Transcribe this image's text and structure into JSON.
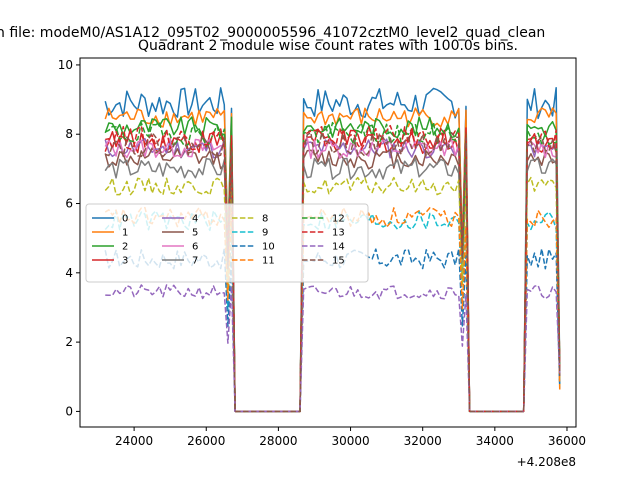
{
  "chart_data": {
    "type": "line",
    "suptitle": "n file: modeM0/AS1A12_095T02_9000005596_41072cztM0_level2_quad_clean",
    "title": "Quadrant 2 module wise count rates with 100.0s bins.",
    "xlabel": "",
    "ylabel": "",
    "x_offset_label": "+4.208e8",
    "xlim": [
      22500,
      36250
    ],
    "ylim": [
      -0.45,
      10.2
    ],
    "xticks": [
      24000,
      26000,
      28000,
      30000,
      32000,
      34000,
      36000
    ],
    "xtick_labels": [
      "24000",
      "26000",
      "28000",
      "30000",
      "32000",
      "34000",
      "36000"
    ],
    "yticks": [
      0,
      2,
      4,
      6,
      8,
      10
    ],
    "ytick_labels": [
      "0",
      "2",
      "4",
      "6",
      "8",
      "10"
    ],
    "x_start": 23200,
    "x_end": 35800,
    "bin_size": 100,
    "gaps": [
      {
        "off_start": 26600,
        "zero_start": 26800,
        "zero_end": 28600,
        "on_again": 28700
      },
      {
        "off_start": 33100,
        "zero_start": 33300,
        "zero_end": 34800,
        "on_again": 34900
      }
    ],
    "legend_location": "center-left",
    "series": [
      {
        "name": "0",
        "level": 8.9,
        "noise": 0.45,
        "color": "#1f77b4",
        "dashed": false
      },
      {
        "name": "1",
        "level": 8.5,
        "noise": 0.3,
        "color": "#ff7f0e",
        "dashed": false
      },
      {
        "name": "2",
        "level": 8.2,
        "noise": 0.3,
        "color": "#2ca02c",
        "dashed": false
      },
      {
        "name": "3",
        "level": 7.8,
        "noise": 0.35,
        "color": "#d62728",
        "dashed": false
      },
      {
        "name": "4",
        "level": 7.6,
        "noise": 0.3,
        "color": "#9467bd",
        "dashed": false
      },
      {
        "name": "5",
        "level": 7.3,
        "noise": 0.3,
        "color": "#8c564b",
        "dashed": false
      },
      {
        "name": "6",
        "level": 7.6,
        "noise": 0.3,
        "color": "#e377c2",
        "dashed": false
      },
      {
        "name": "7",
        "level": 7.0,
        "noise": 0.3,
        "color": "#7f7f7f",
        "dashed": false
      },
      {
        "name": "8",
        "level": 6.5,
        "noise": 0.25,
        "color": "#bcbd22",
        "dashed": true
      },
      {
        "name": "9",
        "level": 5.5,
        "noise": 0.3,
        "color": "#17becf",
        "dashed": true
      },
      {
        "name": "10",
        "level": 4.4,
        "noise": 0.3,
        "color": "#1f77b4",
        "dashed": true
      },
      {
        "name": "11",
        "level": 5.6,
        "noise": 0.3,
        "color": "#ff7f0e",
        "dashed": true
      },
      {
        "name": "12",
        "level": 8.0,
        "noise": 0.35,
        "color": "#2ca02c",
        "dashed": true
      },
      {
        "name": "13",
        "level": 7.9,
        "noise": 0.35,
        "color": "#d62728",
        "dashed": true
      },
      {
        "name": "14",
        "level": 3.45,
        "noise": 0.2,
        "color": "#9467bd",
        "dashed": true
      },
      {
        "name": "15",
        "level": 7.7,
        "noise": 0.35,
        "color": "#8c564b",
        "dashed": true
      }
    ]
  }
}
